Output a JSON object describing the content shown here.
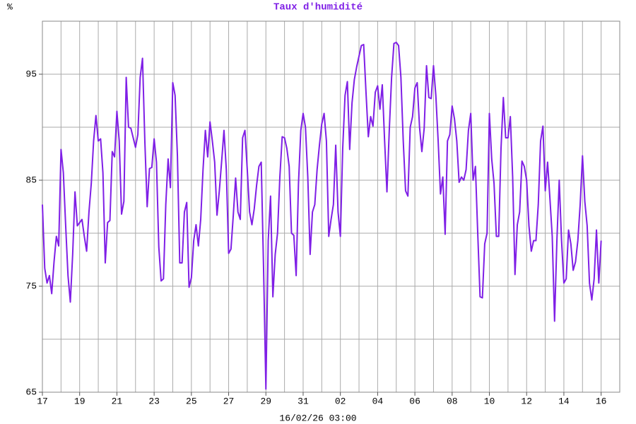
{
  "chart_data": {
    "type": "line",
    "title": "Taux d'humidité",
    "y_unit": "%",
    "xlabel": "16/02/26 03:00",
    "color": "#7f1fe6",
    "grid": true,
    "xlim": [
      0,
      31
    ],
    "ylim": [
      65,
      100
    ],
    "xticks": [
      {
        "value": 0,
        "label": "17"
      },
      {
        "value": 2,
        "label": "19"
      },
      {
        "value": 4,
        "label": "21"
      },
      {
        "value": 6,
        "label": "23"
      },
      {
        "value": 8,
        "label": "25"
      },
      {
        "value": 10,
        "label": "27"
      },
      {
        "value": 12,
        "label": "29"
      },
      {
        "value": 14,
        "label": "31"
      },
      {
        "value": 16,
        "label": "02"
      },
      {
        "value": 18,
        "label": "04"
      },
      {
        "value": 20,
        "label": "06"
      },
      {
        "value": 22,
        "label": "08"
      },
      {
        "value": 24,
        "label": "10"
      },
      {
        "value": 26,
        "label": "12"
      },
      {
        "value": 28,
        "label": "14"
      },
      {
        "value": 30,
        "label": "16"
      }
    ],
    "xgrid": [
      0,
      1,
      2,
      3,
      4,
      5,
      6,
      7,
      8,
      9,
      10,
      11,
      12,
      13,
      14,
      15,
      16,
      17,
      18,
      19,
      20,
      21,
      22,
      23,
      24,
      25,
      26,
      27,
      28,
      29,
      30,
      31
    ],
    "yticks": [
      65,
      75,
      85,
      95
    ],
    "ygrid": [
      65,
      70,
      75,
      80,
      85,
      90,
      95,
      100
    ],
    "x": [
      0,
      0.125,
      0.25,
      0.375,
      0.5,
      0.625,
      0.75,
      0.875,
      1,
      1.125,
      1.25,
      1.375,
      1.5,
      1.625,
      1.75,
      1.875,
      2,
      2.125,
      2.25,
      2.375,
      2.5,
      2.625,
      2.75,
      2.875,
      3,
      3.125,
      3.25,
      3.375,
      3.5,
      3.625,
      3.75,
      3.875,
      4,
      4.125,
      4.25,
      4.375,
      4.5,
      4.625,
      4.75,
      4.875,
      5,
      5.125,
      5.25,
      5.375,
      5.5,
      5.625,
      5.75,
      5.875,
      6,
      6.125,
      6.25,
      6.375,
      6.5,
      6.625,
      6.75,
      6.875,
      7,
      7.125,
      7.25,
      7.375,
      7.5,
      7.625,
      7.75,
      7.875,
      8,
      8.125,
      8.25,
      8.375,
      8.5,
      8.625,
      8.75,
      8.875,
      9,
      9.125,
      9.25,
      9.375,
      9.5,
      9.625,
      9.75,
      9.875,
      10,
      10.125,
      10.25,
      10.375,
      10.5,
      10.625,
      10.75,
      10.875,
      11,
      11.125,
      11.25,
      11.375,
      11.5,
      11.625,
      11.75,
      11.875,
      12,
      12.125,
      12.25,
      12.375,
      12.5,
      12.625,
      12.75,
      12.875,
      13,
      13.125,
      13.25,
      13.375,
      13.5,
      13.625,
      13.75,
      13.875,
      14,
      14.125,
      14.25,
      14.375,
      14.5,
      14.625,
      14.75,
      14.875,
      15,
      15.125,
      15.25,
      15.375,
      15.5,
      15.625,
      15.75,
      15.875,
      16,
      16.125,
      16.25,
      16.375,
      16.5,
      16.625,
      16.75,
      16.875,
      17,
      17.125,
      17.25,
      17.375,
      17.5,
      17.625,
      17.75,
      17.875,
      18,
      18.125,
      18.25,
      18.375,
      18.5,
      18.625,
      18.75,
      18.875,
      19,
      19.125,
      19.25,
      19.375,
      19.5,
      19.625,
      19.75,
      19.875,
      20,
      20.125,
      20.25,
      20.375,
      20.5,
      20.625,
      20.75,
      20.875,
      21,
      21.125,
      21.25,
      21.375,
      21.5,
      21.625,
      21.75,
      21.875,
      22,
      22.125,
      22.25,
      22.375,
      22.5,
      22.625,
      22.75,
      22.875,
      23,
      23.125,
      23.25,
      23.375,
      23.5,
      23.625,
      23.75,
      23.875,
      24,
      24.125,
      24.25,
      24.375,
      24.5,
      24.625,
      24.75,
      24.875,
      25,
      25.125,
      25.25,
      25.375,
      25.5,
      25.625,
      25.75,
      25.875,
      26,
      26.125,
      26.25,
      26.375,
      26.5,
      26.625,
      26.75,
      26.875,
      27,
      27.125,
      27.25,
      27.375,
      27.5,
      27.625,
      27.75,
      27.875,
      28,
      28.125,
      28.25,
      28.375,
      28.5,
      28.625,
      28.75,
      28.875,
      29,
      29.125,
      29.25,
      29.375,
      29.5,
      29.625,
      29.75,
      29.875,
      30
    ],
    "values": [
      82.7,
      76.7,
      75.3,
      76,
      74.3,
      77.3,
      79.7,
      78.8,
      87.9,
      85.7,
      80.7,
      76,
      73.5,
      78,
      83.9,
      80.7,
      81,
      81.3,
      79.7,
      78.3,
      82,
      84.7,
      88.7,
      91.1,
      88.7,
      88.9,
      85.7,
      77.2,
      81,
      81.2,
      87.7,
      87.2,
      91.5,
      88.7,
      81.8,
      83,
      94.7,
      90,
      89.9,
      89,
      88.1,
      89.3,
      94.7,
      96.5,
      88.7,
      82.5,
      86.1,
      86.2,
      88.9,
      86.7,
      78.7,
      75.5,
      75.7,
      82.7,
      87,
      84.3,
      94.2,
      93,
      87.3,
      77.2,
      77.2,
      82,
      82.9,
      74.9,
      75.8,
      79.3,
      80.8,
      78.8,
      81.3,
      86,
      89.7,
      87.2,
      90.5,
      88.7,
      86.7,
      81.7,
      84,
      86.8,
      89.7,
      86,
      78.1,
      78.5,
      81.7,
      85.2,
      82,
      81.3,
      89,
      89.7,
      86,
      82,
      80.8,
      82.3,
      84.5,
      86.3,
      86.7,
      76.7,
      65.3,
      79.3,
      83.5,
      74,
      78,
      80,
      85.3,
      89.1,
      89,
      88,
      86.3,
      80,
      79.8,
      76,
      84.7,
      89.7,
      91.3,
      90,
      85.3,
      78,
      82,
      82.7,
      86,
      88.3,
      90.3,
      91.3,
      88.7,
      79.7,
      81.3,
      82.7,
      88.3,
      82,
      79.7,
      88,
      93,
      94.3,
      87.9,
      92.3,
      94.5,
      95.7,
      96.7,
      97.7,
      97.8,
      93.3,
      89.1,
      91,
      90.1,
      93.3,
      93.9,
      91.7,
      94,
      88.7,
      83.9,
      89.7,
      94.7,
      97.9,
      98,
      97.7,
      94.7,
      88.7,
      84,
      83.5,
      90,
      91,
      93.7,
      94.2,
      90,
      87.7,
      89.9,
      95.8,
      92.8,
      92.7,
      95.8,
      93,
      88.7,
      83.7,
      85.3,
      79.9,
      88.7,
      89.3,
      92,
      90.8,
      88.7,
      84.8,
      85.3,
      85,
      86,
      89.7,
      91.3,
      85,
      86.3,
      80,
      74,
      73.9,
      79,
      80,
      91.3,
      87,
      84.7,
      79.7,
      79.7,
      88,
      92.8,
      89,
      89,
      91,
      85.3,
      76.1,
      80.8,
      82,
      86.8,
      86.3,
      85,
      80.7,
      78.3,
      79.3,
      79.3,
      82.7,
      88.7,
      90.1,
      84,
      86.7,
      83.3,
      79.7,
      71.7,
      79.3,
      85,
      79.3,
      75.3,
      75.7,
      80.3,
      79,
      76.5,
      77.3,
      79.3,
      82.7,
      87.3,
      83,
      80.7,
      75.3,
      73.7,
      75.7,
      80.3,
      75.3,
      79.3
    ]
  }
}
